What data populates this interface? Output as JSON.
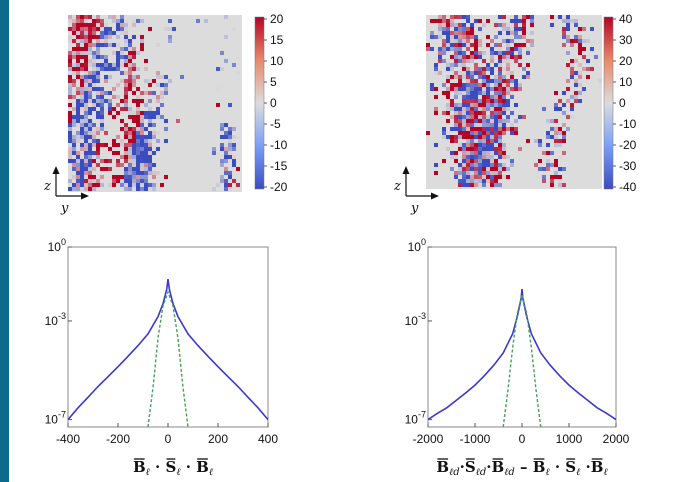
{
  "chart_data": [
    {
      "type": "heatmap",
      "colorbar": {
        "ticks": [
          "20",
          "15",
          "10",
          "5",
          "0",
          "-5",
          "-10",
          "-15",
          "-20"
        ],
        "range": [
          -20,
          20
        ]
      },
      "axis_letters": {
        "vertical": "z",
        "horizontal": "y"
      },
      "colors": {
        "low": "#3b4cc0",
        "mid": "#dcdcdc",
        "high": "#b40426"
      }
    },
    {
      "type": "heatmap",
      "colorbar": {
        "ticks": [
          "40",
          "30",
          "20",
          "10",
          "0",
          "-10",
          "-20",
          "-30",
          "-40"
        ],
        "range": [
          -40,
          40
        ]
      },
      "axis_letters": {
        "vertical": "z",
        "horizontal": "y"
      },
      "colors": {
        "low": "#3b4cc0",
        "mid": "#dcdcdc",
        "high": "#b40426"
      }
    },
    {
      "type": "line",
      "yscale": "log",
      "xlim": [
        -400,
        400
      ],
      "ylim": [
        5e-08,
        1
      ],
      "xticks": [
        "-400",
        "-200",
        "0",
        "200",
        "400"
      ],
      "yticks": [
        {
          "base": "10",
          "exp": "0",
          "value": 1
        },
        {
          "base": "10",
          "exp": "-3",
          "value": 0.001
        },
        {
          "base": "10",
          "exp": "-7",
          "value": 1e-07
        }
      ],
      "series": [
        {
          "style": "solid",
          "color": "#3a3acb",
          "x": [
            -400,
            -360,
            -320,
            -280,
            -240,
            -200,
            -160,
            -120,
            -80,
            -40,
            -20,
            -5,
            0,
            5,
            20,
            40,
            80,
            120,
            160,
            200,
            240,
            280,
            320,
            360,
            400
          ],
          "y": [
            1e-07,
            3e-07,
            8e-07,
            2.2e-06,
            5.5e-06,
            1.4e-05,
            3.7e-05,
            0.0001,
            0.0003,
            0.0015,
            0.005,
            0.02,
            0.05,
            0.02,
            0.005,
            0.0015,
            0.0003,
            0.0001,
            3.7e-05,
            1.4e-05,
            5.5e-06,
            2.2e-06,
            8e-07,
            3e-07,
            1e-07
          ]
        },
        {
          "style": "dashed",
          "color": "#4aa05a",
          "x": [
            -80,
            -60,
            -40,
            -20,
            0,
            20,
            40,
            60,
            80
          ],
          "y": [
            5e-08,
            2e-06,
            0.0002,
            0.004,
            0.015,
            0.004,
            0.0002,
            2e-06,
            5e-08
          ]
        }
      ],
      "xlabel_parts": {
        "B": "B",
        "S": "S",
        "l": "ℓ",
        "dot": "·"
      }
    },
    {
      "type": "line",
      "yscale": "log",
      "xlim": [
        -2000,
        2000
      ],
      "ylim": [
        5e-08,
        1
      ],
      "xticks": [
        "-2000",
        "-1000",
        "0",
        "1000",
        "2000"
      ],
      "yticks": [
        {
          "base": "10",
          "exp": "0",
          "value": 1
        },
        {
          "base": "10",
          "exp": "-3",
          "value": 0.001
        },
        {
          "base": "10",
          "exp": "-7",
          "value": 1e-07
        }
      ],
      "series": [
        {
          "style": "solid",
          "color": "#3a3acb",
          "x": [
            -2000,
            -1800,
            -1600,
            -1400,
            -1200,
            -1000,
            -800,
            -600,
            -400,
            -200,
            -100,
            -20,
            0,
            20,
            100,
            200,
            400,
            600,
            800,
            1000,
            1200,
            1400,
            1600,
            1800,
            2000
          ],
          "y": [
            1e-07,
            1.8e-07,
            3e-07,
            6e-07,
            1.2e-06,
            2.5e-06,
            6e-06,
            1.6e-05,
            5e-05,
            0.0003,
            0.0015,
            0.008,
            0.02,
            0.008,
            0.0015,
            0.0003,
            5e-05,
            1.6e-05,
            6e-06,
            2.5e-06,
            1.2e-06,
            6e-07,
            3e-07,
            1.8e-07,
            1e-07
          ]
        },
        {
          "style": "dashed",
          "color": "#4aa05a",
          "x": [
            -400,
            -300,
            -200,
            -100,
            0,
            100,
            200,
            300,
            400
          ],
          "y": [
            5e-08,
            1.5e-06,
            8e-05,
            0.002,
            0.012,
            0.002,
            8e-05,
            1.5e-06,
            5e-08
          ]
        }
      ],
      "xlabel_parts": {
        "B": "B",
        "S": "S",
        "l": "ℓ",
        "d": "d",
        "dot": "·",
        "minus": "–"
      }
    }
  ]
}
